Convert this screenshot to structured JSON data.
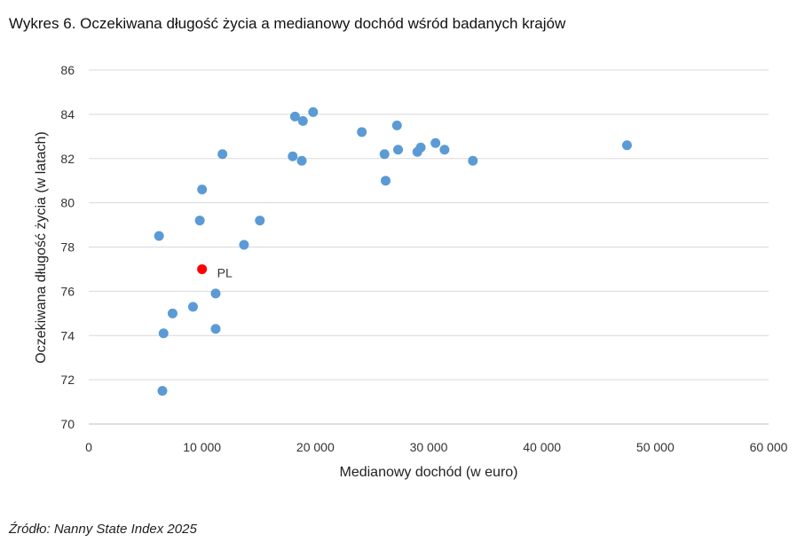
{
  "chart_data": {
    "type": "scatter",
    "title": "Wykres 6. Oczekiwana długość życia a medianowy dochód wśród badanych krajów",
    "xlabel": "Medianowy dochód (w euro)",
    "ylabel": "Oczekiwana długość życia (w latach)",
    "xlim": [
      0,
      60000
    ],
    "ylim": [
      70,
      86
    ],
    "x_ticks": [
      0,
      10000,
      20000,
      30000,
      40000,
      50000,
      60000
    ],
    "x_tick_labels": [
      "0",
      "10 000",
      "20 000",
      "30 000",
      "40 000",
      "50 000",
      "60 000"
    ],
    "y_ticks": [
      70,
      72,
      74,
      76,
      78,
      80,
      82,
      84,
      86
    ],
    "y_tick_labels": [
      "70",
      "72",
      "74",
      "76",
      "78",
      "80",
      "82",
      "84",
      "86"
    ],
    "grid": "horizontal",
    "colors": {
      "default": "#5b9bd5",
      "highlight": "#ff0000"
    },
    "points": [
      {
        "x": 6200,
        "y": 78.5
      },
      {
        "x": 6500,
        "y": 71.5
      },
      {
        "x": 6600,
        "y": 74.1
      },
      {
        "x": 7400,
        "y": 75.0
      },
      {
        "x": 9200,
        "y": 75.3
      },
      {
        "x": 9800,
        "y": 79.2
      },
      {
        "x": 10000,
        "y": 80.6
      },
      {
        "x": 11200,
        "y": 75.9
      },
      {
        "x": 11200,
        "y": 74.3
      },
      {
        "x": 11800,
        "y": 82.2
      },
      {
        "x": 13700,
        "y": 78.1
      },
      {
        "x": 15100,
        "y": 79.2
      },
      {
        "x": 18000,
        "y": 82.1
      },
      {
        "x": 18200,
        "y": 83.9
      },
      {
        "x": 18800,
        "y": 81.9
      },
      {
        "x": 18900,
        "y": 83.7
      },
      {
        "x": 19800,
        "y": 84.1
      },
      {
        "x": 24100,
        "y": 83.2
      },
      {
        "x": 26100,
        "y": 82.2
      },
      {
        "x": 26200,
        "y": 81.0
      },
      {
        "x": 27200,
        "y": 83.5
      },
      {
        "x": 27300,
        "y": 82.4
      },
      {
        "x": 29000,
        "y": 82.3
      },
      {
        "x": 29300,
        "y": 82.5
      },
      {
        "x": 30600,
        "y": 82.7
      },
      {
        "x": 31400,
        "y": 82.4
      },
      {
        "x": 33900,
        "y": 81.9
      },
      {
        "x": 47500,
        "y": 82.6
      },
      {
        "x": 10000,
        "y": 77.0,
        "label": "PL",
        "highlight": true
      }
    ]
  },
  "source": "Źródło: Nanny State Index 2025"
}
